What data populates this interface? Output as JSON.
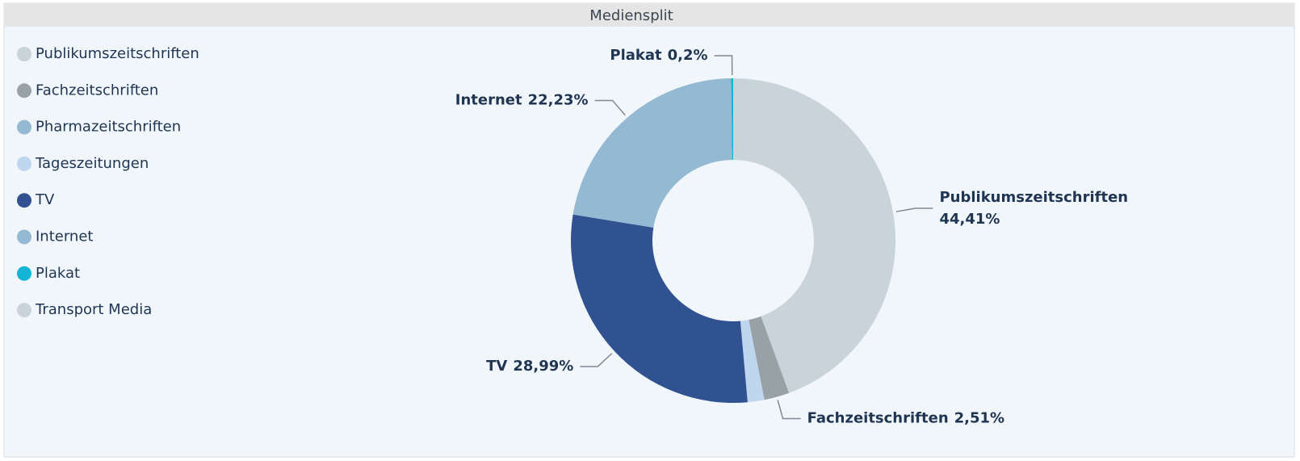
{
  "chart_data": {
    "type": "donut",
    "title": "Mediensplit",
    "categories": [
      "Publikumszeitschriften",
      "Fachzeitschriften",
      "Pharmazeitschriften",
      "Tageszeitungen",
      "TV",
      "Internet",
      "Plakat",
      "Transport Media"
    ],
    "values": [
      44.41,
      2.51,
      0,
      1.66,
      28.99,
      22.23,
      0.2,
      0
    ],
    "value_labels": [
      "44,41%",
      "2,51%",
      null,
      null,
      "28,99%",
      "22,23%",
      "0,2%",
      null
    ],
    "colors": [
      "#c8d3da",
      "#98a2a6",
      "#93b9d3",
      "#bfd6ef",
      "#315291",
      "#93b9d3",
      "#12b5d6",
      "#c8d3da"
    ],
    "legend": "left"
  }
}
